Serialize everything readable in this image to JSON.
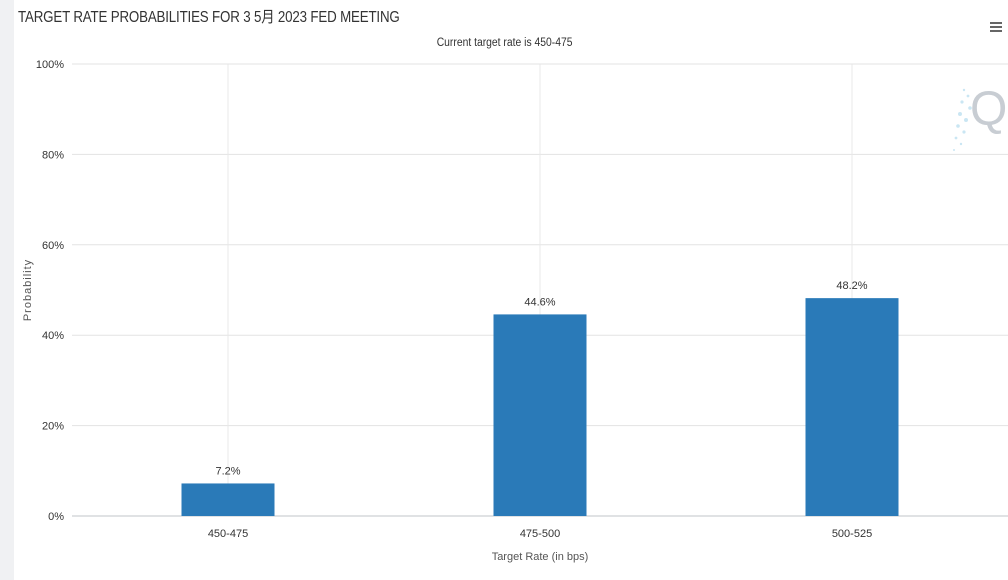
{
  "chart_data": {
    "type": "bar",
    "title": "TARGET RATE PROBABILITIES FOR 3 5月 2023 FED MEETING",
    "subtitle": "Current target rate is 450-475",
    "xlabel": "Target Rate (in bps)",
    "ylabel": "Probability",
    "categories": [
      "450-475",
      "475-500",
      "500-525"
    ],
    "values": [
      7.2,
      44.6,
      48.2
    ],
    "data_labels": [
      "7.2%",
      "44.6%",
      "48.2%"
    ],
    "ylim": [
      0,
      100
    ],
    "yticks": [
      0,
      20,
      40,
      60,
      80,
      100
    ],
    "ytick_labels": [
      "0%",
      "20%",
      "40%",
      "60%",
      "80%",
      "100%"
    ],
    "grid": true,
    "legend": "none",
    "bar_color": "#2a7ab8"
  },
  "icons": {
    "menu": "hamburger-menu-icon",
    "watermark": "q-watermark-icon"
  }
}
